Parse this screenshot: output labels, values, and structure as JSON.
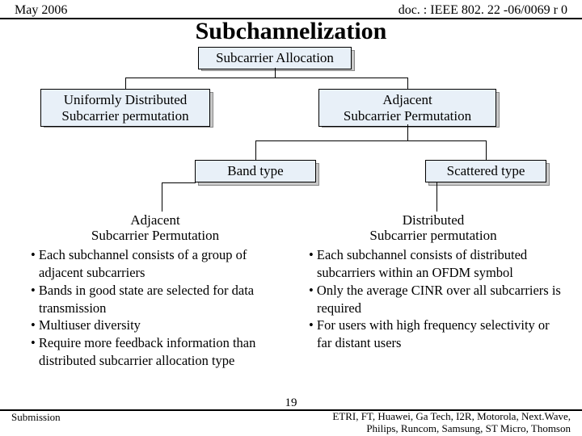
{
  "header": {
    "left": "May 2006",
    "right": "doc. : IEEE 802. 22 -06/0069 r 0"
  },
  "title": "Subchannelization",
  "nodes": {
    "root": "Subcarrier Allocation",
    "left1": "Uniformly Distributed\nSubcarrier permutation",
    "right1": "Adjacent\nSubcarrier Permutation",
    "band": "Band type",
    "scattered": "Scattered type"
  },
  "columns": {
    "left": {
      "title": "Adjacent\nSubcarrier Permutation",
      "bullets": [
        "Each subchannel consists of a group of adjacent subcarriers",
        "Bands in good state are selected for data transmission",
        "Multiuser diversity",
        "Require more feedback information than distributed subcarrier allocation type"
      ]
    },
    "right": {
      "title": "Distributed\nSubcarrier permutation",
      "bullets": [
        "Each subchannel consists of distributed subcarriers within an OFDM symbol",
        "Only the average CINR over all subcarriers is required",
        "For users with high frequency selectivity or far distant users"
      ]
    }
  },
  "footer": {
    "left": "Submission",
    "page": "19",
    "right": "ETRI, FT, Huawei, Ga Tech, I2R, Motorola, Next.Wave, Philips, Runcom, Samsung, ST Micro, Thomson"
  },
  "style": {
    "node_fill": "#e8f0f8",
    "shadow_fill": "#c8c8c8"
  }
}
